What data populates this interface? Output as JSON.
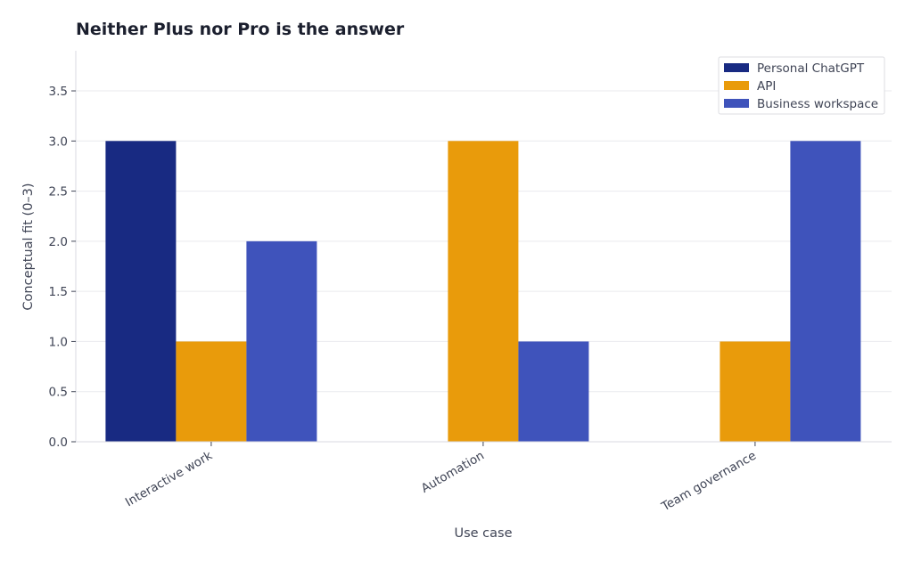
{
  "chart_data": {
    "type": "bar",
    "title": "Neither Plus nor Pro is the answer",
    "xlabel": "Use case",
    "ylabel": "Conceptual fit (0–3)",
    "categories": [
      "Interactive work",
      "Automation",
      "Team governance"
    ],
    "series": [
      {
        "name": "Personal ChatGPT",
        "values": [
          3,
          0,
          0
        ],
        "color": "#182a82"
      },
      {
        "name": "API",
        "values": [
          1,
          3,
          1
        ],
        "color": "#e99b0b"
      },
      {
        "name": "Business workspace",
        "values": [
          2,
          1,
          3
        ],
        "color": "#3f53bb"
      }
    ],
    "ylim": [
      0,
      3.9
    ],
    "yticks": [
      "0.0",
      "0.5",
      "1.0",
      "1.5",
      "2.0",
      "2.5",
      "3.0",
      "3.5"
    ],
    "grid": true,
    "legend_position": "top-right"
  }
}
